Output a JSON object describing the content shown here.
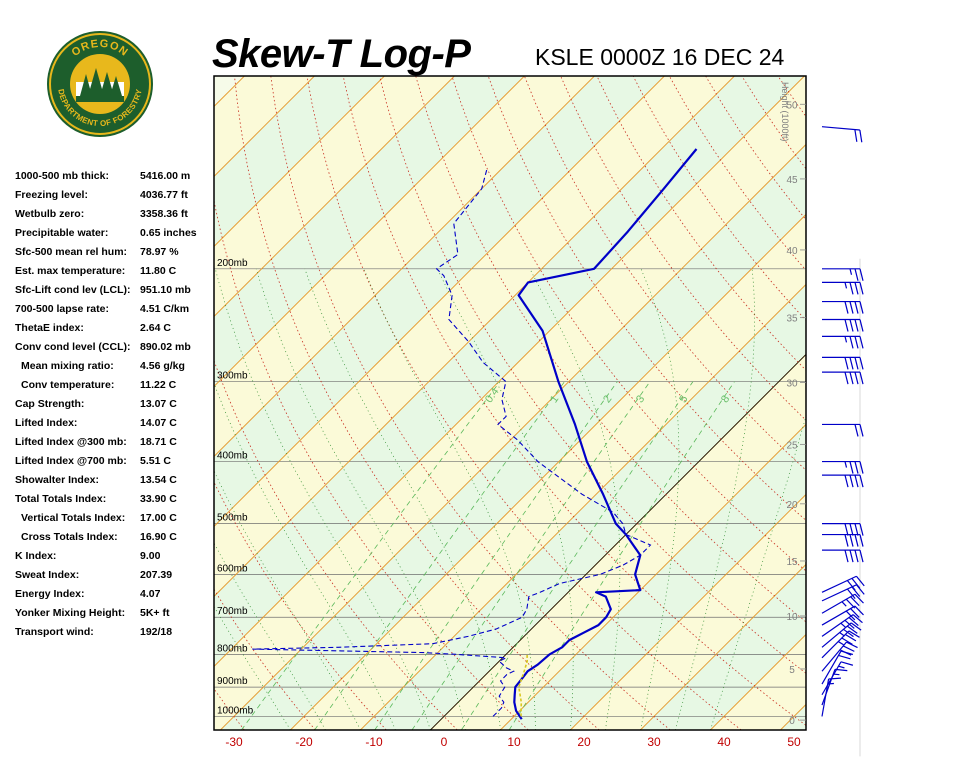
{
  "header": {
    "title": "Skew-T Log-P",
    "station_time": "KSLE 0000Z 16 DEC 24"
  },
  "logo": {
    "text_top": "OREGON",
    "text_bottom": "DEPARTMENT OF FORESTRY",
    "colors": {
      "ring": "#1d5e2c",
      "gold": "#e8b81c"
    }
  },
  "indices": [
    {
      "label": "1000-500 mb thick:",
      "value": "5416.00 m"
    },
    {
      "label": "Freezing level:",
      "value": "4036.77 ft"
    },
    {
      "label": "Wetbulb zero:",
      "value": "3358.36 ft"
    },
    {
      "label": "Precipitable water:",
      "value": "0.65 inches"
    },
    {
      "label": "Sfc-500 mean rel hum:",
      "value": "78.97 %"
    },
    {
      "label": "Est. max temperature:",
      "value": "11.80 C"
    },
    {
      "label": "Sfc-Lift cond lev (LCL):",
      "value": "951.10 mb"
    },
    {
      "label": "700-500 lapse rate:",
      "value": "4.51 C/km"
    },
    {
      "label": "ThetaE index:",
      "value": "2.64 C"
    },
    {
      "label": "Conv cond level (CCL):",
      "value": "890.02 mb"
    },
    {
      "label": "Mean mixing ratio:",
      "value": "4.56 g/kg",
      "indent": true
    },
    {
      "label": "Conv temperature:",
      "value": "11.22 C",
      "indent": true
    },
    {
      "label": "Cap Strength:",
      "value": "13.07 C"
    },
    {
      "label": "Lifted Index:",
      "value": "14.07 C"
    },
    {
      "label": "Lifted Index @300 mb:",
      "value": "18.71 C"
    },
    {
      "label": "Lifted Index @700 mb:",
      "value": "5.51 C"
    },
    {
      "label": "Showalter Index:",
      "value": "13.54 C"
    },
    {
      "label": "Total Totals Index:",
      "value": "33.90 C"
    },
    {
      "label": "Vertical Totals Index:",
      "value": "17.00 C",
      "indent": true
    },
    {
      "label": "Cross Totals Index:",
      "value": "16.90 C",
      "indent": true
    },
    {
      "label": "K Index:",
      "value": "9.00"
    },
    {
      "label": "Sweat Index:",
      "value": "207.39"
    },
    {
      "label": "Energy Index:",
      "value": "4.07"
    },
    {
      "label": "Yonker Mixing Height:",
      "value": "5K+ ft"
    },
    {
      "label": "Transport wind:",
      "value": "192/18"
    }
  ],
  "chart_data": {
    "type": "line",
    "subtype": "skew-t log-p",
    "xlabel": "",
    "ylabel": "",
    "temperature_ticks": [
      -30,
      -20,
      -10,
      0,
      10,
      20,
      30,
      40,
      50
    ],
    "temperature_range": [
      -33,
      52
    ],
    "pressure_range": [
      1050,
      100
    ],
    "pressure_labels": [
      {
        "p": 200,
        "label": "200mb"
      },
      {
        "p": 300,
        "label": "300mb"
      },
      {
        "p": 400,
        "label": "400mb"
      },
      {
        "p": 500,
        "label": "500mb"
      },
      {
        "p": 600,
        "label": "600mb"
      },
      {
        "p": 700,
        "label": "700mb"
      },
      {
        "p": 800,
        "label": "800mb"
      },
      {
        "p": 900,
        "label": "900mb"
      },
      {
        "p": 1000,
        "label": "1000mb"
      }
    ],
    "height_axis_title": "Height (1000ft)",
    "height_ticks": [
      0,
      5,
      10,
      15,
      20,
      25,
      30,
      35,
      40,
      45,
      50
    ],
    "mixing_ratio_labels": [
      "0.4",
      "1",
      "2",
      "3",
      "5",
      "8"
    ],
    "series": [
      {
        "role": "temperature",
        "color": "#0000c8",
        "points": [
          [
            1010,
            11.5
          ],
          [
            980,
            9.5
          ],
          [
            950,
            8.0
          ],
          [
            925,
            7.0
          ],
          [
            900,
            6.0
          ],
          [
            880,
            5.8
          ],
          [
            850,
            5.5
          ],
          [
            830,
            6.0
          ],
          [
            800,
            6.2
          ],
          [
            780,
            7.0
          ],
          [
            760,
            7.0
          ],
          [
            740,
            8.0
          ],
          [
            720,
            9.0
          ],
          [
            700,
            9.0
          ],
          [
            680,
            8.5
          ],
          [
            650,
            6.0
          ],
          [
            640,
            4.0
          ],
          [
            635,
            10.0
          ],
          [
            600,
            7.0
          ],
          [
            560,
            5.0
          ],
          [
            520,
            0.0
          ],
          [
            500,
            -3.0
          ],
          [
            450,
            -9.0
          ],
          [
            400,
            -16.0
          ],
          [
            350,
            -23.0
          ],
          [
            300,
            -31.5
          ],
          [
            250,
            -41.0
          ],
          [
            220,
            -49.5
          ],
          [
            210,
            -50.0
          ],
          [
            200,
            -42.5
          ],
          [
            175,
            -43.0
          ],
          [
            150,
            -44.0
          ],
          [
            130,
            -45.0
          ]
        ]
      },
      {
        "role": "dewpoint",
        "color": "#0000c8",
        "points": [
          [
            1000,
            7.0
          ],
          [
            970,
            7.0
          ],
          [
            950,
            6.5
          ],
          [
            930,
            5.0
          ],
          [
            900,
            4.5
          ],
          [
            880,
            3.0
          ],
          [
            860,
            3.0
          ],
          [
            850,
            3.5
          ],
          [
            840,
            2.0
          ],
          [
            820,
            0.0
          ],
          [
            810,
            0.5
          ],
          [
            800,
            -7.0
          ],
          [
            795,
            -12.0
          ],
          [
            790,
            -24.0
          ],
          [
            785,
            -37.0
          ],
          [
            780,
            -25.0
          ],
          [
            770,
            -12.0
          ],
          [
            750,
            -8.0
          ],
          [
            730,
            -5.0
          ],
          [
            700,
            -3.0
          ],
          [
            680,
            -3.5
          ],
          [
            650,
            -5.0
          ],
          [
            640,
            -4.0
          ],
          [
            620,
            -2.5
          ],
          [
            600,
            2.0
          ],
          [
            580,
            4.0
          ],
          [
            560,
            5.0
          ],
          [
            540,
            5.0
          ],
          [
            520,
            0.0
          ],
          [
            500,
            -2.0
          ],
          [
            480,
            -5.0
          ],
          [
            450,
            -12.0
          ],
          [
            400,
            -23.0
          ],
          [
            370,
            -29.0
          ],
          [
            350,
            -34.0
          ],
          [
            340,
            -34.0
          ],
          [
            320,
            -37.0
          ],
          [
            300,
            -39.0
          ],
          [
            280,
            -45.0
          ],
          [
            260,
            -50.0
          ],
          [
            240,
            -56.0
          ],
          [
            220,
            -59.0
          ],
          [
            205,
            -63.0
          ],
          [
            200,
            -65.0
          ],
          [
            190,
            -64.0
          ],
          [
            170,
            -69.0
          ],
          [
            150,
            -70.0
          ],
          [
            140,
            -72.0
          ]
        ]
      },
      {
        "role": "parcel",
        "color": "#d8c820",
        "points": [
          [
            1000,
            11.0
          ],
          [
            950,
            9.0
          ],
          [
            900,
            6.5
          ],
          [
            850,
            5.0
          ],
          [
            820,
            4.0
          ],
          [
            800,
            3.0
          ]
        ]
      }
    ],
    "wind_barbs": [
      {
        "p": 1000,
        "dir": 190,
        "speed": 15
      },
      {
        "p": 960,
        "dir": 200,
        "speed": 15
      },
      {
        "p": 925,
        "dir": 210,
        "speed": 15
      },
      {
        "p": 890,
        "dir": 210,
        "speed": 20
      },
      {
        "p": 850,
        "dir": 220,
        "speed": 30
      },
      {
        "p": 810,
        "dir": 225,
        "speed": 35
      },
      {
        "p": 780,
        "dir": 230,
        "speed": 35
      },
      {
        "p": 750,
        "dir": 235,
        "speed": 35
      },
      {
        "p": 720,
        "dir": 240,
        "speed": 30
      },
      {
        "p": 690,
        "dir": 240,
        "speed": 35
      },
      {
        "p": 660,
        "dir": 245,
        "speed": 30
      },
      {
        "p": 640,
        "dir": 245,
        "speed": 30
      },
      {
        "p": 550,
        "dir": 270,
        "speed": 40
      },
      {
        "p": 520,
        "dir": 270,
        "speed": 40
      },
      {
        "p": 500,
        "dir": 270,
        "speed": 40
      },
      {
        "p": 420,
        "dir": 270,
        "speed": 40
      },
      {
        "p": 400,
        "dir": 270,
        "speed": 35
      },
      {
        "p": 350,
        "dir": 270,
        "speed": 20
      },
      {
        "p": 290,
        "dir": 270,
        "speed": 40
      },
      {
        "p": 275,
        "dir": 270,
        "speed": 40
      },
      {
        "p": 255,
        "dir": 270,
        "speed": 35
      },
      {
        "p": 240,
        "dir": 270,
        "speed": 40
      },
      {
        "p": 225,
        "dir": 270,
        "speed": 40
      },
      {
        "p": 210,
        "dir": 270,
        "speed": 35
      },
      {
        "p": 200,
        "dir": 270,
        "speed": 25
      },
      {
        "p": 120,
        "dir": 275,
        "speed": 20
      }
    ]
  }
}
